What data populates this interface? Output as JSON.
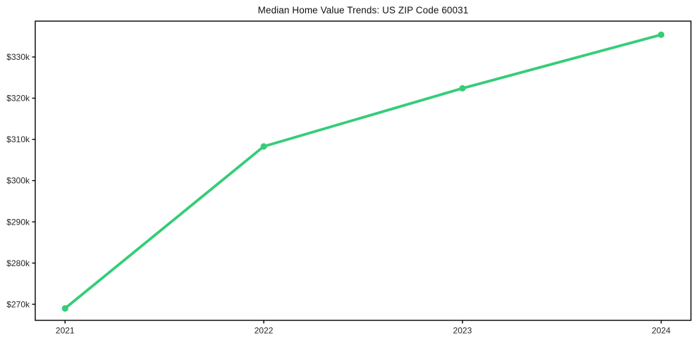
{
  "chart_data": {
    "type": "line",
    "title": "Median Home Value Trends: US ZIP Code 60031",
    "x": [
      2021,
      2022,
      2023,
      2024
    ],
    "x_tick_labels": [
      "2021",
      "2022",
      "2023",
      "2024"
    ],
    "series": [
      {
        "name": "Median home value",
        "values": [
          269000,
          308300,
          322400,
          335400
        ]
      }
    ],
    "y_ticks": [
      {
        "value": 270000,
        "label": "$270k"
      },
      {
        "value": 280000,
        "label": "$280k"
      },
      {
        "value": 290000,
        "label": "$290k"
      },
      {
        "value": 300000,
        "label": "$300k"
      },
      {
        "value": 310000,
        "label": "$310k"
      },
      {
        "value": 320000,
        "label": "$320k"
      },
      {
        "value": 330000,
        "label": "$330k"
      }
    ],
    "xlim": [
      2020.85,
      2024.15
    ],
    "ylim": [
      266100,
      338700
    ],
    "xlabel": "",
    "ylabel": "",
    "grid": false,
    "legend": "none",
    "line_color": "#35cd78",
    "marker_color": "#35cd78",
    "axis_color": "#000000",
    "tick_label_color": "#262626",
    "background_color": "#ffffff"
  }
}
